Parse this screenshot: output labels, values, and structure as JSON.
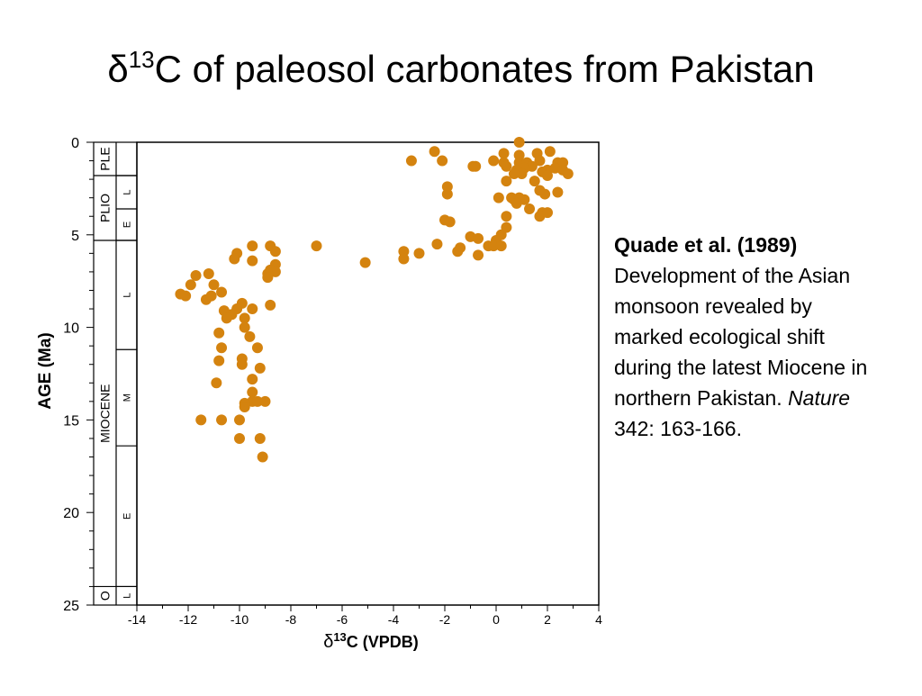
{
  "slide": {
    "title_delta": "δ",
    "title_sup": "13",
    "title_rest": "C of paleosol carbonates from Pakistan"
  },
  "citation": {
    "authors": "Quade et al. (1989)",
    "text": "Development of the Asian monsoon revealed by marked ecological shift during the latest Miocene in northern Pakistan.",
    "journal": "Nature",
    "pages": " 342: 163-166."
  },
  "colors": {
    "points": "#D4830F"
  },
  "chart_data": {
    "type": "scatter",
    "xlabel_delta": "δ",
    "xlabel_sup": "13",
    "xlabel_rest": "C  (VPDB)",
    "ylabel": "AGE  (Ma)",
    "xlim": [
      -14,
      4
    ],
    "ylim": [
      25,
      0
    ],
    "x_ticks": [
      -14,
      -12,
      -10,
      -8,
      -6,
      -4,
      -2,
      0,
      2,
      4
    ],
    "y_ticks": [
      0,
      5,
      10,
      15,
      20,
      25
    ],
    "grid": false,
    "epochs": [
      {
        "label": "PLE",
        "from": 0,
        "to": 1.8
      },
      {
        "label": "PLIO",
        "from": 1.8,
        "to": 5.3
      },
      {
        "label": "MIOCENE",
        "from": 5.3,
        "to": 24
      },
      {
        "label": "O",
        "from": 24,
        "to": 25
      }
    ],
    "stages": [
      {
        "label": "L",
        "from": 1.8,
        "to": 3.6
      },
      {
        "label": "E",
        "from": 3.6,
        "to": 5.3
      },
      {
        "label": "L",
        "from": 5.3,
        "to": 11.2
      },
      {
        "label": "M",
        "from": 11.2,
        "to": 16.4
      },
      {
        "label": "E",
        "from": 16.4,
        "to": 24
      },
      {
        "label": "L",
        "from": 24,
        "to": 25
      }
    ],
    "points": [
      [
        0.9,
        0.0
      ],
      [
        2.1,
        0.5
      ],
      [
        1.6,
        0.6
      ],
      [
        0.9,
        0.7
      ],
      [
        0.3,
        0.6
      ],
      [
        -2.4,
        0.5
      ],
      [
        -3.3,
        1.0
      ],
      [
        -2.1,
        1.0
      ],
      [
        -0.1,
        1.0
      ],
      [
        0.3,
        1.1
      ],
      [
        0.9,
        1.1
      ],
      [
        1.2,
        1.1
      ],
      [
        1.7,
        1.0
      ],
      [
        2.4,
        1.1
      ],
      [
        2.6,
        1.1
      ],
      [
        0.4,
        1.3
      ],
      [
        1.4,
        1.3
      ],
      [
        1.1,
        1.4
      ],
      [
        2.3,
        1.4
      ],
      [
        0.8,
        1.5
      ],
      [
        2.0,
        1.5
      ],
      [
        2.6,
        1.5
      ],
      [
        -0.9,
        1.3
      ],
      [
        -0.8,
        1.3
      ],
      [
        1.0,
        1.7
      ],
      [
        0.7,
        1.7
      ],
      [
        1.8,
        1.6
      ],
      [
        2.8,
        1.7
      ],
      [
        2.0,
        1.8
      ],
      [
        0.4,
        2.1
      ],
      [
        1.5,
        2.1
      ],
      [
        -1.9,
        2.4
      ],
      [
        -1.9,
        2.8
      ],
      [
        1.9,
        2.8
      ],
      [
        2.4,
        2.7
      ],
      [
        1.7,
        2.6
      ],
      [
        0.1,
        3.0
      ],
      [
        0.7,
        3.1
      ],
      [
        1.1,
        3.1
      ],
      [
        0.9,
        3.0
      ],
      [
        0.6,
        3.0
      ],
      [
        0.8,
        3.3
      ],
      [
        1.3,
        3.6
      ],
      [
        1.8,
        3.8
      ],
      [
        1.7,
        4.0
      ],
      [
        2.0,
        3.8
      ],
      [
        0.4,
        4.0
      ],
      [
        -2.0,
        4.2
      ],
      [
        -1.8,
        4.3
      ],
      [
        0.4,
        4.6
      ],
      [
        0.2,
        5.0
      ],
      [
        -1.0,
        5.1
      ],
      [
        -0.7,
        5.2
      ],
      [
        0.0,
        5.3
      ],
      [
        -2.3,
        5.5
      ],
      [
        -0.3,
        5.6
      ],
      [
        -0.1,
        5.6
      ],
      [
        0.2,
        5.6
      ],
      [
        -1.4,
        5.7
      ],
      [
        -1.5,
        5.9
      ],
      [
        -3.6,
        5.9
      ],
      [
        -3.0,
        6.0
      ],
      [
        -0.7,
        6.1
      ],
      [
        -3.6,
        6.3
      ],
      [
        -7.0,
        5.6
      ],
      [
        -8.8,
        5.6
      ],
      [
        -9.5,
        5.6
      ],
      [
        -10.1,
        6.0
      ],
      [
        -8.6,
        5.9
      ],
      [
        -10.2,
        6.3
      ],
      [
        -9.5,
        6.4
      ],
      [
        -8.6,
        6.6
      ],
      [
        -8.8,
        6.9
      ],
      [
        -5.1,
        6.5
      ],
      [
        -8.6,
        7.0
      ],
      [
        -8.9,
        7.1
      ],
      [
        -8.9,
        7.3
      ],
      [
        -11.7,
        7.2
      ],
      [
        -11.2,
        7.1
      ],
      [
        -11.9,
        7.7
      ],
      [
        -11.0,
        7.7
      ],
      [
        -10.7,
        8.1
      ],
      [
        -12.3,
        8.2
      ],
      [
        -12.1,
        8.3
      ],
      [
        -11.3,
        8.5
      ],
      [
        -11.1,
        8.3
      ],
      [
        -9.9,
        8.7
      ],
      [
        -10.1,
        9.0
      ],
      [
        -8.8,
        8.8
      ],
      [
        -9.5,
        9.0
      ],
      [
        -10.6,
        9.1
      ],
      [
        -10.3,
        9.3
      ],
      [
        -10.5,
        9.5
      ],
      [
        -9.8,
        9.5
      ],
      [
        -9.8,
        10.0
      ],
      [
        -10.8,
        10.3
      ],
      [
        -9.6,
        10.5
      ],
      [
        -10.7,
        11.1
      ],
      [
        -9.3,
        11.1
      ],
      [
        -9.9,
        11.7
      ],
      [
        -10.8,
        11.8
      ],
      [
        -9.9,
        12.0
      ],
      [
        -9.2,
        12.2
      ],
      [
        -9.5,
        12.8
      ],
      [
        -10.9,
        13.0
      ],
      [
        -9.5,
        13.5
      ],
      [
        -9.5,
        14.0
      ],
      [
        -9.3,
        14.0
      ],
      [
        -9.0,
        14.0
      ],
      [
        -9.8,
        14.1
      ],
      [
        -9.8,
        14.3
      ],
      [
        -11.5,
        15.0
      ],
      [
        -10.7,
        15.0
      ],
      [
        -10.0,
        15.0
      ],
      [
        -9.2,
        16.0
      ],
      [
        -10.0,
        16.0
      ],
      [
        -9.1,
        17.0
      ]
    ]
  }
}
